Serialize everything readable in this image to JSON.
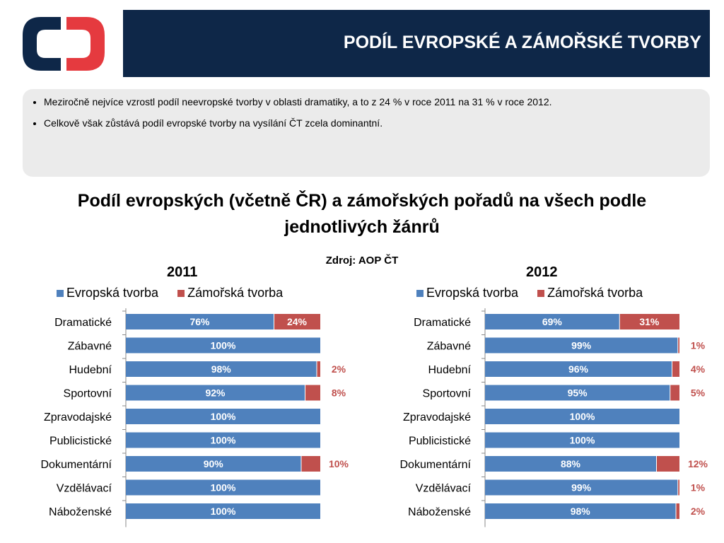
{
  "header": {
    "title": "PODÍL EVROPSKÉ A ZÁMOŘSKÉ TVORBY",
    "logo": "ct-logo-icon"
  },
  "bullets": [
    "Meziročně nejvíce vzrostl podíl neevropské tvorby v oblasti dramatiky, a to z 24 % v roce 2011 na 31 % v roce 2012.",
    "Celkově však zůstává podíl evropské tvorby na vysílání ČT zcela dominantní."
  ],
  "colors": {
    "european": "#4f81bd",
    "overseas": "#c0504d",
    "title_bar": "#0e2748"
  },
  "chart_data": [
    {
      "type": "bar",
      "orientation": "horizontal",
      "stacked": true,
      "title": "Podíl evropských (včetně ČR) a zámořských pořadů na všech podle jednotlivých žánrů",
      "source": "Zdroj: AOP ČT",
      "subtitle": "2011",
      "categories": [
        "Dramatické",
        "Zábavné",
        "Hudební",
        "Sportovní",
        "Zpravodajské",
        "Publicistické",
        "Dokumentární",
        "Vzdělávací",
        "Náboženské"
      ],
      "series": [
        {
          "name": "Evropská tvorba",
          "values": [
            76,
            100,
            98,
            92,
            100,
            100,
            90,
            100,
            100
          ]
        },
        {
          "name": "Zámořská tvorba",
          "values": [
            24,
            0,
            2,
            8,
            0,
            0,
            10,
            0,
            0
          ]
        }
      ],
      "xlim": [
        0,
        100
      ],
      "legend": "top"
    },
    {
      "type": "bar",
      "orientation": "horizontal",
      "stacked": true,
      "subtitle": "2012",
      "categories": [
        "Dramatické",
        "Zábavné",
        "Hudební",
        "Sportovní",
        "Zpravodajské",
        "Publicistické",
        "Dokumentární",
        "Vzdělávací",
        "Náboženské"
      ],
      "series": [
        {
          "name": "Evropská tvorba",
          "values": [
            69,
            99,
            96,
            95,
            100,
            100,
            88,
            99,
            98
          ]
        },
        {
          "name": "Zámořská tvorba",
          "values": [
            31,
            1,
            4,
            5,
            0,
            0,
            12,
            1,
            2
          ]
        }
      ],
      "xlim": [
        0,
        100
      ],
      "legend": "top"
    }
  ]
}
